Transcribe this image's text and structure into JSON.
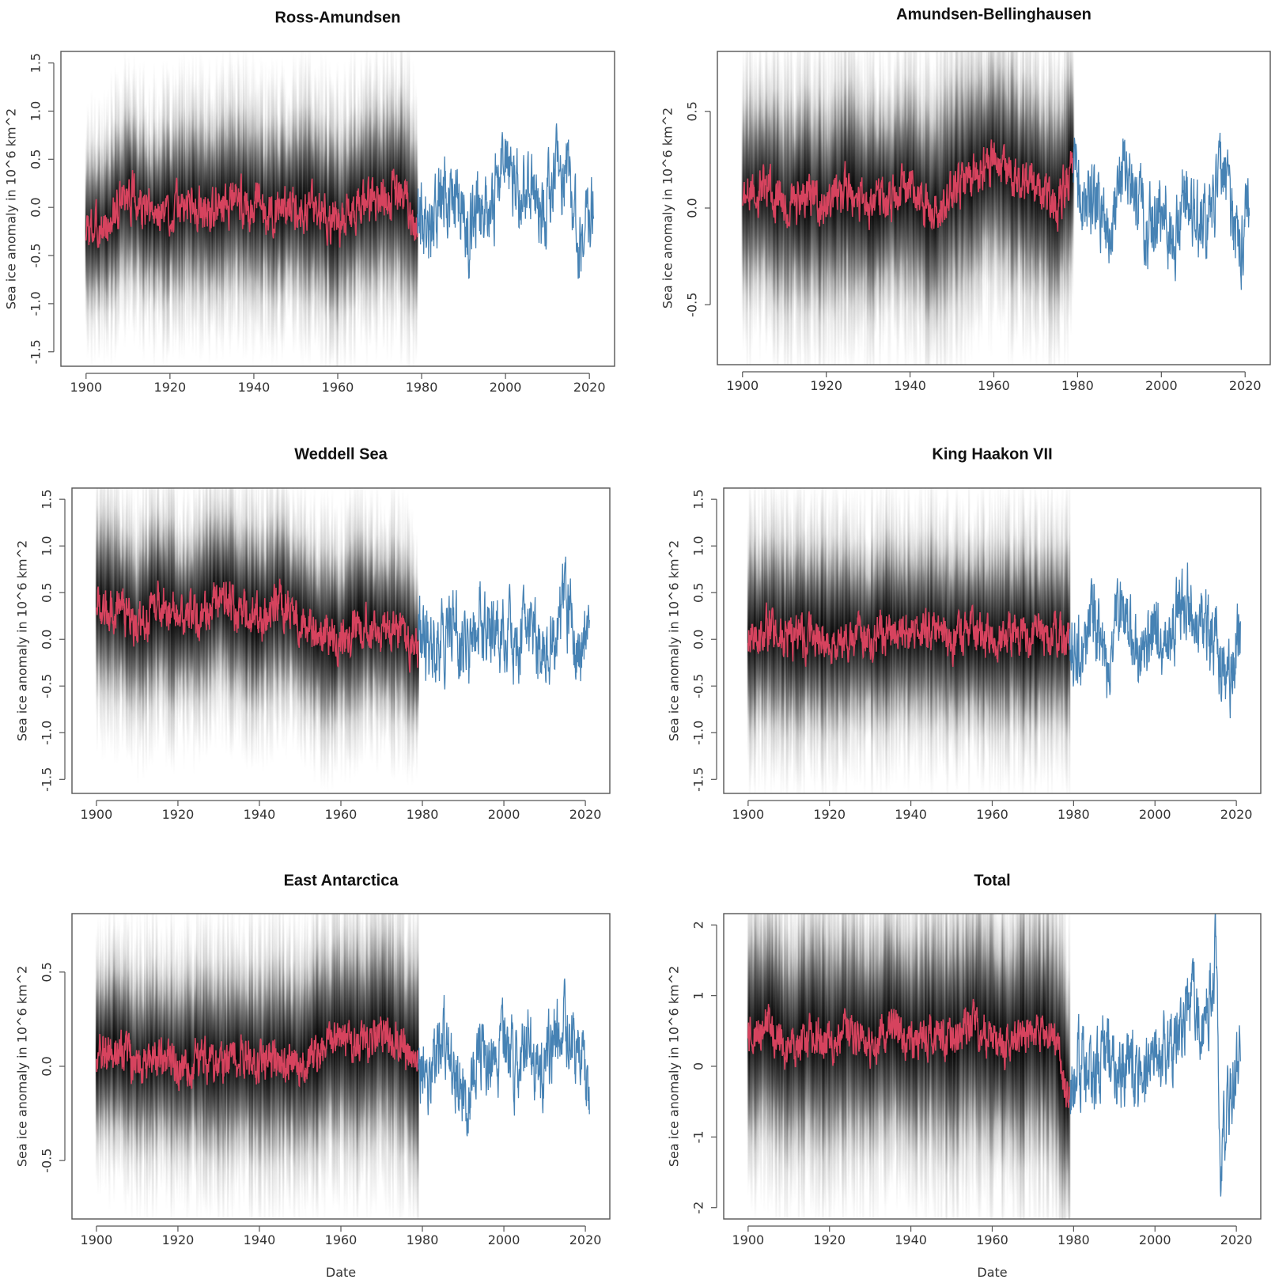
{
  "chart_data": [
    {
      "type": "line",
      "title": "Ross-Amundsen",
      "xlabel": "",
      "ylabel": "Sea ice anomaly in 10^6 km^2",
      "xlim": [
        1894,
        2026
      ],
      "ylim": [
        -1.65,
        1.62
      ],
      "xticks": [
        1900,
        1920,
        1940,
        1960,
        1980,
        2000,
        2020
      ],
      "xtick_labels": [
        "1900",
        "1920",
        "1940",
        "1960",
        "1980",
        "2000",
        "2020"
      ],
      "yticks": [
        -1.5,
        -1.0,
        -0.5,
        0.0,
        0.5,
        1.0,
        1.5
      ],
      "ytick_labels": [
        "-1.5",
        "-1.0",
        "-0.5",
        "0.0",
        "0.5",
        "1.0",
        "1.5"
      ],
      "grid": false,
      "colors": {
        "reconstruction": "#d6435e",
        "observed": "#4682b4",
        "ensemble": "#000000"
      },
      "series": [
        {
          "x": [
            1900,
            1905,
            1910,
            1915,
            1920,
            1925,
            1930,
            1935,
            1940,
            1945,
            1950,
            1955,
            1960,
            1965,
            1970,
            1975,
            1979
          ],
          "values": [
            -0.25,
            -0.2,
            0.15,
            -0.1,
            -0.05,
            0.05,
            -0.05,
            0.1,
            0.0,
            -0.05,
            0.05,
            0.0,
            -0.2,
            0.05,
            0.1,
            0.15,
            -0.2
          ]
        },
        {
          "x": [
            1979,
            1982,
            1985,
            1988,
            1991,
            1994,
            1997,
            2000,
            2003,
            2006,
            2009,
            2012,
            2015,
            2018,
            2021
          ],
          "values": [
            0.1,
            -0.3,
            0.15,
            0.2,
            -0.2,
            0.1,
            0.0,
            0.6,
            0.1,
            0.3,
            -0.1,
            0.4,
            0.3,
            -0.5,
            0.2
          ]
        }
      ],
      "ensemble_spread": [
        {
          "x": 1900,
          "lower": -1.0,
          "upper": 0.7
        },
        {
          "x": 1979,
          "lower": -1.1,
          "upper": 0.9
        }
      ]
    },
    {
      "type": "line",
      "title": "Amundsen-Bellinghausen",
      "xlabel": "",
      "ylabel": "Sea ice anomaly in 10^6 km^2",
      "xlim": [
        1894,
        2026
      ],
      "ylim": [
        -0.81,
        0.81
      ],
      "xticks": [
        1900,
        1920,
        1940,
        1960,
        1980,
        2000,
        2020
      ],
      "xtick_labels": [
        "1900",
        "1920",
        "1940",
        "1960",
        "1980",
        "2000",
        "2020"
      ],
      "yticks": [
        -0.5,
        0.0,
        0.5
      ],
      "ytick_labels": [
        "-0.5",
        "0.0",
        "0.5"
      ],
      "grid": false,
      "colors": {
        "reconstruction": "#d6435e",
        "observed": "#4682b4",
        "ensemble": "#000000"
      },
      "series": [
        {
          "x": [
            1900,
            1905,
            1910,
            1915,
            1920,
            1925,
            1930,
            1935,
            1940,
            1945,
            1950,
            1955,
            1960,
            1965,
            1970,
            1975,
            1979
          ],
          "values": [
            0.05,
            0.1,
            0.0,
            0.05,
            0.0,
            0.1,
            0.0,
            0.05,
            0.1,
            -0.05,
            0.1,
            0.15,
            0.25,
            0.15,
            0.1,
            0.0,
            0.25
          ]
        },
        {
          "x": [
            1979,
            1982,
            1985,
            1988,
            1991,
            1994,
            1997,
            2000,
            2003,
            2006,
            2009,
            2012,
            2015,
            2018,
            2021
          ],
          "values": [
            0.2,
            0.0,
            0.1,
            -0.1,
            0.2,
            0.0,
            -0.1,
            0.05,
            -0.15,
            0.1,
            -0.1,
            0.05,
            0.2,
            -0.2,
            -0.05
          ]
        }
      ],
      "ensemble_spread": [
        {
          "x": 1900,
          "lower": -0.5,
          "upper": 0.55
        },
        {
          "x": 1979,
          "lower": -0.4,
          "upper": 0.75
        }
      ]
    },
    {
      "type": "line",
      "title": "Weddell Sea",
      "xlabel": "",
      "ylabel": "Sea ice anomaly in 10^6 km^2",
      "xlim": [
        1894,
        2026
      ],
      "ylim": [
        -1.65,
        1.62
      ],
      "xticks": [
        1900,
        1920,
        1940,
        1960,
        1980,
        2000,
        2020
      ],
      "xtick_labels": [
        "1900",
        "1920",
        "1940",
        "1960",
        "1980",
        "2000",
        "2020"
      ],
      "yticks": [
        -1.5,
        -1.0,
        -0.5,
        0.0,
        0.5,
        1.0,
        1.5
      ],
      "ytick_labels": [
        "-1.5",
        "-1.0",
        "-0.5",
        "0.0",
        "0.5",
        "1.0",
        "1.5"
      ],
      "grid": false,
      "colors": {
        "reconstruction": "#d6435e",
        "observed": "#4682b4",
        "ensemble": "#000000"
      },
      "series": [
        {
          "x": [
            1900,
            1905,
            1910,
            1915,
            1920,
            1925,
            1930,
            1935,
            1940,
            1945,
            1950,
            1955,
            1960,
            1965,
            1970,
            1975,
            1979
          ],
          "values": [
            0.4,
            0.35,
            0.1,
            0.4,
            0.2,
            0.25,
            0.5,
            0.3,
            0.2,
            0.4,
            0.2,
            0.0,
            0.0,
            0.2,
            0.1,
            0.1,
            -0.2
          ]
        },
        {
          "x": [
            1979,
            1982,
            1985,
            1988,
            1991,
            1994,
            1997,
            2000,
            2003,
            2006,
            2009,
            2012,
            2015,
            2018,
            2021
          ],
          "values": [
            0.1,
            -0.2,
            0.0,
            0.2,
            -0.3,
            0.3,
            0.0,
            0.2,
            -0.2,
            0.3,
            -0.1,
            0.0,
            0.5,
            -0.2,
            0.1
          ]
        }
      ],
      "ensemble_spread": [
        {
          "x": 1900,
          "lower": -0.6,
          "upper": 1.3
        },
        {
          "x": 1979,
          "lower": -0.9,
          "upper": 0.9
        }
      ]
    },
    {
      "type": "line",
      "title": "King Haakon VII",
      "xlabel": "",
      "ylabel": "Sea ice anomaly in 10^6 km^2",
      "xlim": [
        1894,
        2026
      ],
      "ylim": [
        -1.65,
        1.62
      ],
      "xticks": [
        1900,
        1920,
        1940,
        1960,
        1980,
        2000,
        2020
      ],
      "xtick_labels": [
        "1900",
        "1920",
        "1940",
        "1960",
        "1980",
        "2000",
        "2020"
      ],
      "yticks": [
        -1.5,
        -1.0,
        -0.5,
        0.0,
        0.5,
        1.0,
        1.5
      ],
      "ytick_labels": [
        "-1.5",
        "-1.0",
        "-0.5",
        "0.0",
        "0.5",
        "1.0",
        "1.5"
      ],
      "grid": false,
      "colors": {
        "reconstruction": "#d6435e",
        "observed": "#4682b4",
        "ensemble": "#000000"
      },
      "series": [
        {
          "x": [
            1900,
            1905,
            1910,
            1915,
            1920,
            1925,
            1930,
            1935,
            1940,
            1945,
            1950,
            1955,
            1960,
            1965,
            1970,
            1975,
            1979
          ],
          "values": [
            0.0,
            0.1,
            0.0,
            0.05,
            0.0,
            0.05,
            0.0,
            0.1,
            0.05,
            0.1,
            0.0,
            0.05,
            0.0,
            0.05,
            0.0,
            0.05,
            0.0
          ]
        },
        {
          "x": [
            1979,
            1982,
            1985,
            1988,
            1991,
            1994,
            1997,
            2000,
            2003,
            2006,
            2009,
            2012,
            2015,
            2018,
            2021
          ],
          "values": [
            0.0,
            -0.3,
            0.2,
            -0.4,
            0.3,
            0.0,
            -0.2,
            0.1,
            -0.2,
            0.5,
            0.4,
            0.2,
            0.0,
            -0.5,
            0.1
          ]
        }
      ],
      "ensemble_spread": [
        {
          "x": 1900,
          "lower": -1.0,
          "upper": 1.0
        },
        {
          "x": 1979,
          "lower": -1.0,
          "upper": 1.0
        }
      ]
    },
    {
      "type": "line",
      "title": "East Antarctica",
      "xlabel": "Date",
      "ylabel": "Sea ice anomaly in 10^6 km^2",
      "xlim": [
        1894,
        2026
      ],
      "ylim": [
        -0.81,
        0.81
      ],
      "xticks": [
        1900,
        1920,
        1940,
        1960,
        1980,
        2000,
        2020
      ],
      "xtick_labels": [
        "1900",
        "1920",
        "1940",
        "1960",
        "1980",
        "2000",
        "2020"
      ],
      "yticks": [
        -0.5,
        0.0,
        0.5
      ],
      "ytick_labels": [
        "-0.5",
        "0.0",
        "0.5"
      ],
      "grid": false,
      "colors": {
        "reconstruction": "#d6435e",
        "observed": "#4682b4",
        "ensemble": "#000000"
      },
      "series": [
        {
          "x": [
            1900,
            1905,
            1910,
            1915,
            1920,
            1925,
            1930,
            1935,
            1940,
            1945,
            1950,
            1955,
            1960,
            1965,
            1970,
            1975,
            1979
          ],
          "values": [
            0.05,
            0.1,
            0.0,
            0.05,
            0.0,
            0.05,
            0.0,
            0.05,
            0.0,
            0.05,
            0.0,
            0.1,
            0.15,
            0.1,
            0.2,
            0.1,
            0.0
          ]
        },
        {
          "x": [
            1979,
            1982,
            1985,
            1988,
            1991,
            1994,
            1997,
            2000,
            2003,
            2006,
            2009,
            2012,
            2015,
            2018,
            2021
          ],
          "values": [
            0.0,
            -0.1,
            0.2,
            0.0,
            -0.2,
            0.1,
            0.0,
            0.1,
            0.0,
            0.1,
            -0.1,
            0.1,
            0.25,
            0.0,
            -0.1
          ]
        }
      ],
      "ensemble_spread": [
        {
          "x": 1900,
          "lower": -0.45,
          "upper": 0.5
        },
        {
          "x": 1979,
          "lower": -0.5,
          "upper": 0.6
        }
      ]
    },
    {
      "type": "line",
      "title": "Total",
      "xlabel": "Date",
      "ylabel": "Sea ice anomaly in 10^6 km^2",
      "xlim": [
        1894,
        2026
      ],
      "ylim": [
        -2.16,
        2.16
      ],
      "xticks": [
        1900,
        1920,
        1940,
        1960,
        1980,
        2000,
        2020
      ],
      "xtick_labels": [
        "1900",
        "1920",
        "1940",
        "1960",
        "1980",
        "2000",
        "2020"
      ],
      "yticks": [
        -2,
        -1,
        0,
        1,
        2
      ],
      "ytick_labels": [
        "-2",
        "-1",
        "0",
        "1",
        "2"
      ],
      "grid": false,
      "colors": {
        "reconstruction": "#d6435e",
        "observed": "#4682b4",
        "ensemble": "#000000"
      },
      "series": [
        {
          "x": [
            1900,
            1905,
            1910,
            1915,
            1920,
            1925,
            1930,
            1935,
            1940,
            1945,
            1950,
            1955,
            1960,
            1965,
            1970,
            1975,
            1979
          ],
          "values": [
            0.4,
            0.6,
            0.2,
            0.5,
            0.3,
            0.5,
            0.3,
            0.6,
            0.3,
            0.5,
            0.3,
            0.6,
            0.4,
            0.3,
            0.5,
            0.4,
            -0.5
          ]
        },
        {
          "x": [
            1979,
            1982,
            1985,
            1988,
            1991,
            1994,
            1997,
            2000,
            2003,
            2006,
            2009,
            2012,
            2015,
            2016,
            2018,
            2021
          ],
          "values": [
            -0.5,
            0.2,
            -0.3,
            0.3,
            -0.2,
            0.0,
            -0.3,
            0.3,
            0.0,
            0.5,
            1.0,
            0.5,
            1.6,
            -1.5,
            -0.6,
            0.3
          ]
        }
      ],
      "ensemble_spread": [
        {
          "x": 1900,
          "lower": -1.2,
          "upper": 1.9
        },
        {
          "x": 1979,
          "lower": -1.5,
          "upper": 1.9
        }
      ]
    }
  ]
}
